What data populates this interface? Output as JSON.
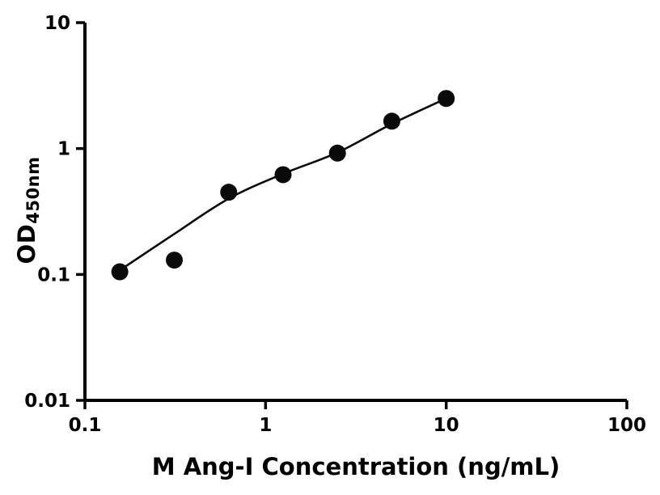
{
  "figure": {
    "background": "#ffffff",
    "axis_color": "#000000",
    "text_color": "#000000"
  },
  "chart_data": {
    "type": "scatter",
    "title": "",
    "xlabel": "M Ang-I Concentration (ng/mL)",
    "ylabel_main": "OD",
    "ylabel_subscript": "450nm",
    "x_scale": "log",
    "y_scale": "log",
    "xlim": [
      0.1,
      100
    ],
    "ylim": [
      0.01,
      10
    ],
    "x_ticks": [
      0.1,
      1,
      10,
      100
    ],
    "x_tick_labels": [
      "0.1",
      "1",
      "10",
      "100"
    ],
    "y_ticks": [
      0.01,
      0.1,
      1,
      10
    ],
    "y_tick_labels": [
      "0.01",
      "0.1",
      "1",
      "10"
    ],
    "grid": false,
    "legend": "none",
    "series": [
      {
        "x": [
          0.156,
          0.3125,
          0.625,
          1.25,
          2.5,
          5,
          10
        ],
        "y": [
          0.105,
          0.13,
          0.45,
          0.62,
          0.92,
          1.65,
          2.5
        ]
      }
    ],
    "fit_curve_points": [
      [
        0.156,
        0.108
      ],
      [
        0.3125,
        0.21
      ],
      [
        0.625,
        0.4
      ],
      [
        1.25,
        0.63
      ],
      [
        2.5,
        0.93
      ],
      [
        5,
        1.57
      ],
      [
        10,
        2.5
      ]
    ],
    "marker_color": "#0a0a0a",
    "line_color": "#0a0a0a"
  }
}
